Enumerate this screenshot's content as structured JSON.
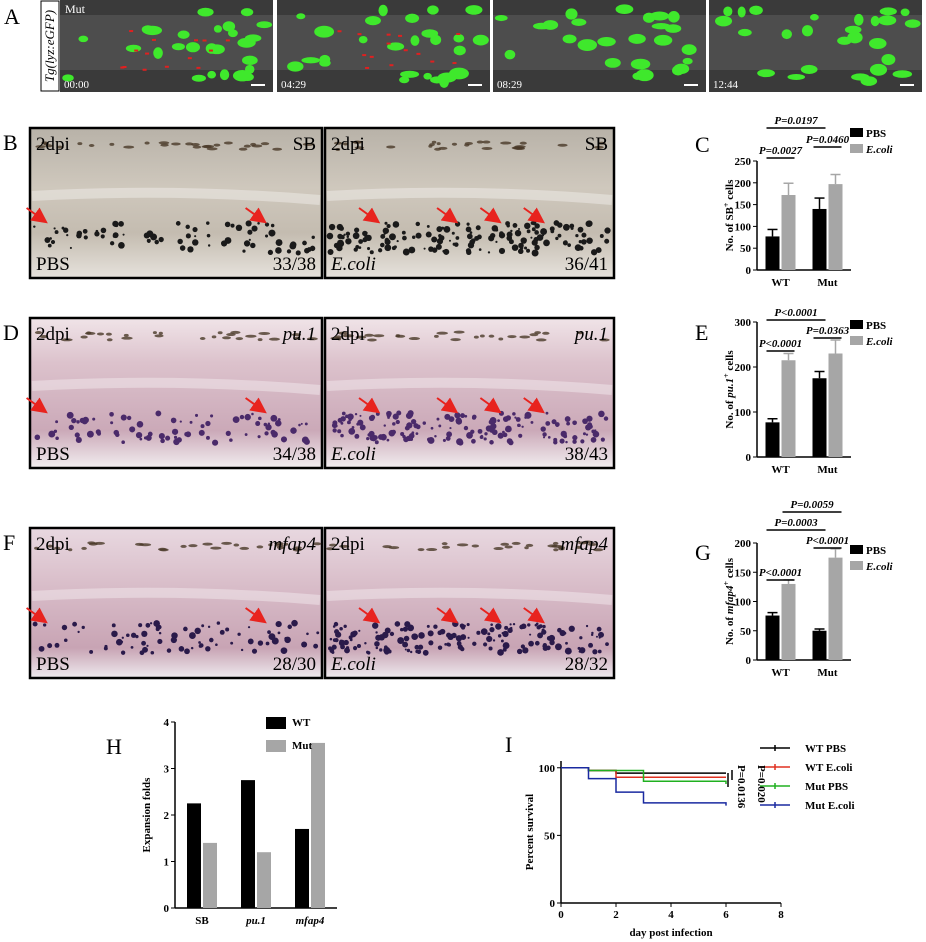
{
  "panel_a": {
    "label": "A",
    "side_label": "Tg(lyz:eGFP)",
    "genotype": "Mut",
    "times": [
      "00:00",
      "04:29",
      "08:29",
      "12:44"
    ]
  },
  "images": [
    {
      "label": "B",
      "tiles": [
        {
          "top_left": "2dpi",
          "top_right": "SB",
          "bottom_left": "PBS",
          "bottom_right": "33/38"
        },
        {
          "top_left": "2dpi",
          "top_right": "SB",
          "bottom_left": "E.coli",
          "bottom_right": "36/41"
        }
      ]
    },
    {
      "label": "D",
      "tiles": [
        {
          "top_left": "2dpi",
          "top_right": "pu.1",
          "bottom_left": "PBS",
          "bottom_right": "34/38"
        },
        {
          "top_left": "2dpi",
          "top_right": "pu.1",
          "bottom_left": "E.coli",
          "bottom_right": "38/43"
        }
      ]
    },
    {
      "label": "F",
      "tiles": [
        {
          "top_left": "2dpi",
          "top_right": "mfap4",
          "bottom_left": "PBS",
          "bottom_right": "28/30"
        },
        {
          "top_left": "2dpi",
          "top_right": "mfap4",
          "bottom_left": "E.coli",
          "bottom_right": "28/32"
        }
      ]
    }
  ],
  "chart_data": [
    {
      "type": "bar_error",
      "label": "C",
      "ylabel": [
        {
          "text": "No. of SB"
        },
        {
          "text": "+",
          "style": "sup"
        },
        {
          "text": " cells"
        }
      ],
      "categories": [
        "WT",
        "Mut"
      ],
      "series": [
        {
          "name": "PBS",
          "color": "#000000",
          "values": [
            77,
            140
          ],
          "errors": [
            16,
            25
          ]
        },
        {
          "name": "E.coli",
          "color": "#a6a6a6",
          "values": [
            172,
            197
          ],
          "errors": [
            27,
            22
          ]
        }
      ],
      "ylim": [
        0,
        250
      ],
      "yticks": [
        0,
        50,
        100,
        150,
        200,
        250
      ],
      "annotations": [
        "P=0.0027",
        "P=0.0460",
        "P=0.0197"
      ]
    },
    {
      "type": "bar_error",
      "label": "E",
      "ylabel": [
        {
          "text": "No. of "
        },
        {
          "text": "pu.1",
          "style": "italic"
        },
        {
          "text": "+",
          "style": "sup"
        },
        {
          "text": " cells"
        }
      ],
      "categories": [
        "WT",
        "Mut"
      ],
      "series": [
        {
          "name": "PBS",
          "color": "#000000",
          "values": [
            77,
            175
          ],
          "errors": [
            8,
            15
          ]
        },
        {
          "name": "E.coli",
          "color": "#a6a6a6",
          "values": [
            215,
            230
          ],
          "errors": [
            15,
            30
          ]
        }
      ],
      "ylim": [
        0,
        300
      ],
      "yticks": [
        0,
        100,
        200,
        300
      ],
      "annotations": [
        "P<0.0001",
        "P=0.0363",
        "P<0.0001"
      ]
    },
    {
      "type": "bar_error",
      "label": "G",
      "ylabel": [
        {
          "text": "No. of "
        },
        {
          "text": "mfap4",
          "style": "italic"
        },
        {
          "text": "+",
          "style": "sup"
        },
        {
          "text": " cells"
        }
      ],
      "categories": [
        "WT",
        "Mut"
      ],
      "series": [
        {
          "name": "PBS",
          "color": "#000000",
          "values": [
            76,
            50
          ],
          "errors": [
            5,
            3
          ]
        },
        {
          "name": "E.coli",
          "color": "#a6a6a6",
          "values": [
            130,
            175
          ],
          "errors": [
            7,
            15
          ]
        }
      ],
      "ylim": [
        0,
        200
      ],
      "yticks": [
        0,
        50,
        100,
        150,
        200
      ],
      "annotations": [
        "P<0.0001",
        "P<0.0001",
        "P=0.0003",
        "P=0.0059"
      ]
    },
    {
      "type": "bar",
      "label": "H",
      "ylabel": "Expansion folds",
      "categories": [
        "SB",
        "pu.1",
        "mfap4"
      ],
      "series": [
        {
          "name": "WT",
          "color": "#000000",
          "values": [
            2.25,
            2.75,
            1.7
          ]
        },
        {
          "name": "Mut",
          "color": "#a6a6a6",
          "values": [
            1.4,
            1.2,
            3.55
          ]
        }
      ],
      "ylim": [
        0,
        4
      ],
      "yticks": [
        0,
        1,
        2,
        3,
        4
      ]
    },
    {
      "type": "step",
      "label": "I",
      "xlabel": "day post infection",
      "ylabel": "Percent survival",
      "xlim": [
        0,
        8
      ],
      "xticks": [
        0,
        2,
        4,
        6,
        8
      ],
      "ylim": [
        0,
        105
      ],
      "yticks": [
        0,
        50,
        100
      ],
      "series": [
        {
          "name": "WT PBS",
          "color": "#000000",
          "x": [
            0,
            1,
            2,
            6
          ],
          "values": [
            100,
            98,
            96,
            96
          ]
        },
        {
          "name": "WT E.coli",
          "color": "#e03020",
          "x": [
            0,
            1,
            2,
            6
          ],
          "values": [
            100,
            98,
            93,
            93
          ]
        },
        {
          "name": "Mut PBS",
          "color": "#20b020",
          "x": [
            0,
            1,
            3,
            6
          ],
          "values": [
            100,
            98,
            90,
            88
          ]
        },
        {
          "name": "Mut E.coli",
          "color": "#1a2aa0",
          "x": [
            0,
            1,
            2,
            3,
            6
          ],
          "values": [
            100,
            92,
            82,
            74,
            72
          ]
        }
      ],
      "annotations": [
        "P=0.0136",
        "P=0.020"
      ]
    }
  ]
}
